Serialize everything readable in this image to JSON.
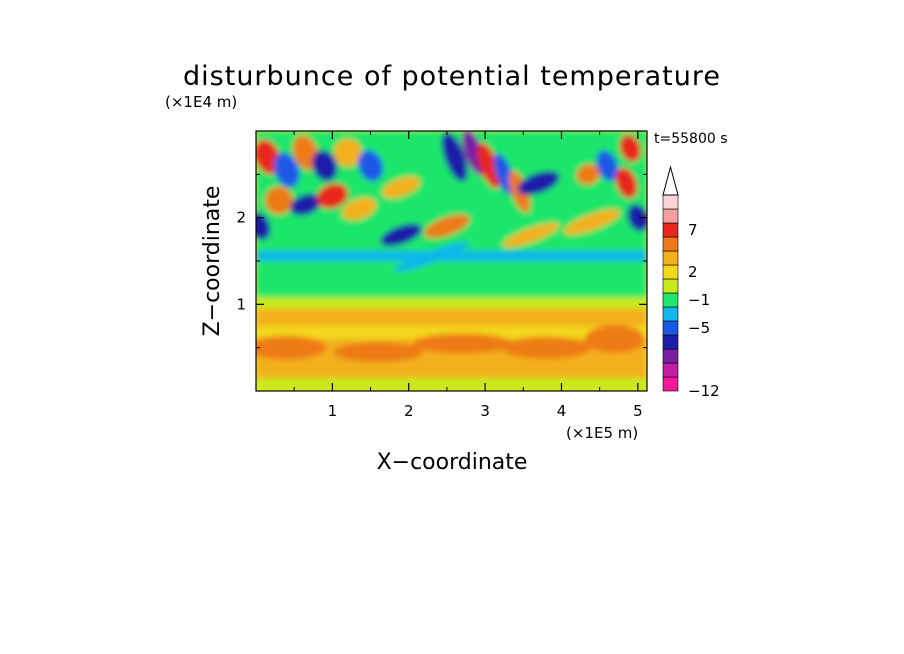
{
  "chart_data": {
    "type": "heatmap",
    "title": "disturbunce of potential temperature",
    "time_label": "t=55800 s",
    "xlabel": "X−coordinate",
    "ylabel": "Z−coordinate",
    "x_unit_label": "(×1E5 m)",
    "y_unit_label": "(×1E4 m)",
    "xlim": [
      0,
      5.12
    ],
    "ylim": [
      0,
      3.0
    ],
    "x_ticks": [
      1,
      2,
      3,
      4,
      5
    ],
    "x_tick_labels": [
      "1",
      "2",
      "3",
      "4",
      "5"
    ],
    "y_ticks": [
      1,
      2
    ],
    "y_tick_labels": [
      "1",
      "2"
    ],
    "colorbar": {
      "labels": [
        {
          "value": 7,
          "text": "7"
        },
        {
          "value": 2,
          "text": "2"
        },
        {
          "value": -1,
          "text": "−1"
        },
        {
          "value": -5,
          "text": "−5"
        },
        {
          "value": -12,
          "text": "−12"
        }
      ],
      "colors": [
        "#f5179b",
        "#c41ea7",
        "#7a1fa3",
        "#1a1fa8",
        "#1a58e6",
        "#10b7ea",
        "#1ee66b",
        "#c8e81b",
        "#f3d81d",
        "#f3b01a",
        "#ee7a17",
        "#e8281c",
        "#f5a0a0",
        "#fbd5d5"
      ],
      "extend": "max"
    }
  }
}
